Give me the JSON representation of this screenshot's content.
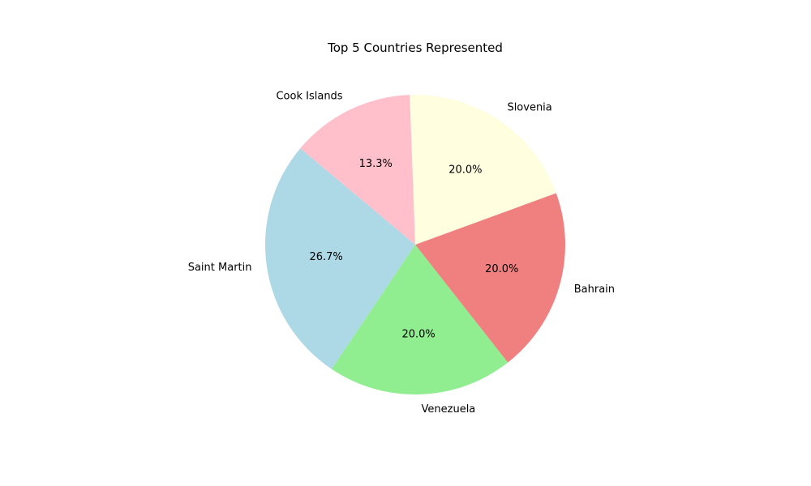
{
  "chart_data": {
    "type": "pie",
    "title": "Top 5 Countries Represented",
    "slices": [
      {
        "label": "Saint Martin",
        "value": 26.7,
        "percent_label": "26.7%",
        "color": "#add8e6"
      },
      {
        "label": "Venezuela",
        "value": 20.0,
        "percent_label": "20.0%",
        "color": "#90ee90"
      },
      {
        "label": "Bahrain",
        "value": 20.0,
        "percent_label": "20.0%",
        "color": "#f08080"
      },
      {
        "label": "Slovenia",
        "value": 20.0,
        "percent_label": "20.0%",
        "color": "#ffffe0"
      },
      {
        "label": "Cook Islands",
        "value": 13.3,
        "percent_label": "13.3%",
        "color": "#ffc0cb"
      }
    ],
    "start_angle_deg": 140,
    "direction": "counterclockwise",
    "legend": "none"
  }
}
